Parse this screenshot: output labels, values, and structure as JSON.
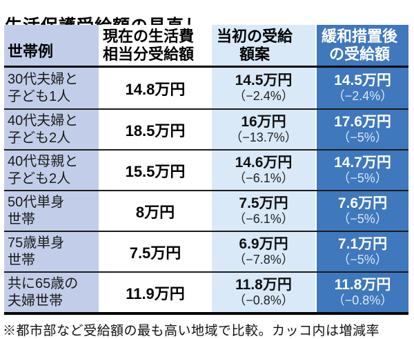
{
  "title": "生活保護受給額の見直し",
  "footnote": "※都市部など受給額の最も高い地域で比較。カッコ内は増減率",
  "colors": {
    "household_col_bg": "#c2cee9",
    "initial_col_bg": "#d9e9f8",
    "relaxed_col_bg": "#3f78bd",
    "relaxed_col_text": "#ffffff"
  },
  "table": {
    "headers": {
      "household": "世帯例",
      "current": "現在の生活費\n相当分受給額",
      "initial": "当初の受給\n額案",
      "relaxed": "緩和措置後\nの受給額"
    },
    "rows": [
      {
        "household": "30代夫婦と\n子ども1人",
        "current": "14.8万円",
        "initial_amount": "14.5万円",
        "initial_pct": "（−2.4%）",
        "relaxed_amount": "14.5万円",
        "relaxed_pct": "（−2.4%）"
      },
      {
        "household": "40代夫婦と\n子ども2人",
        "current": "18.5万円",
        "initial_amount": "16万円",
        "initial_pct": "（−13.7%）",
        "relaxed_amount": "17.6万円",
        "relaxed_pct": "（−5%）"
      },
      {
        "household": "40代母親と\n子ども2人",
        "current": "15.5万円",
        "initial_amount": "14.6万円",
        "initial_pct": "（−6.1%）",
        "relaxed_amount": "14.7万円",
        "relaxed_pct": "（−5%）"
      },
      {
        "household": "50代単身\n世帯",
        "current": "8万円",
        "initial_amount": "7.5万円",
        "initial_pct": "（−6.1%）",
        "relaxed_amount": "7.6万円",
        "relaxed_pct": "（−5%）"
      },
      {
        "household": "75歳単身\n世帯",
        "current": "7.5万円",
        "initial_amount": "6.9万円",
        "initial_pct": "（−7.8%）",
        "relaxed_amount": "7.1万円",
        "relaxed_pct": "（−5%）"
      },
      {
        "household": "共に65歳の\n夫婦世帯",
        "current": "11.9万円",
        "initial_amount": "11.8万円",
        "initial_pct": "（−0.8%）",
        "relaxed_amount": "11.8万円",
        "relaxed_pct": "（−0.8%）"
      }
    ]
  },
  "chart_data": {
    "type": "table",
    "title": "生活保護受給額の見直し",
    "columns": [
      "世帯例",
      "現在の生活費相当分受給額",
      "当初の受給額案",
      "緩和措置後の受給額"
    ],
    "rows": [
      [
        "30代夫婦と子ども1人",
        "14.8万円",
        "14.5万円（−2.4%）",
        "14.5万円（−2.4%）"
      ],
      [
        "40代夫婦と子ども2人",
        "18.5万円",
        "16万円（−13.7%）",
        "17.6万円（−5%）"
      ],
      [
        "40代母親と子ども2人",
        "15.5万円",
        "14.6万円（−6.1%）",
        "14.7万円（−5%）"
      ],
      [
        "50代単身世帯",
        "8万円",
        "7.5万円（−6.1%）",
        "7.6万円（−5%）"
      ],
      [
        "75歳単身世帯",
        "7.5万円",
        "6.9万円（−7.8%）",
        "7.1万円（−5%）"
      ],
      [
        "共に65歳の夫婦世帯",
        "11.9万円",
        "11.8万円（−0.8%）",
        "11.8万円（−0.8%）"
      ]
    ],
    "footnote": "※都市部など受給額の最も高い地域で比較。カッコ内は増減率",
    "values_man_yen": {
      "current": [
        14.8,
        18.5,
        15.5,
        8,
        7.5,
        11.9
      ],
      "initial_proposal": [
        14.5,
        16,
        14.6,
        7.5,
        6.9,
        11.8
      ],
      "initial_change_pct": [
        -2.4,
        -13.7,
        -6.1,
        -6.1,
        -7.8,
        -0.8
      ],
      "after_relaxation": [
        14.5,
        17.6,
        14.7,
        7.6,
        7.1,
        11.8
      ],
      "relaxed_change_pct": [
        -2.4,
        -5,
        -5,
        -5,
        -5,
        -0.8
      ]
    }
  }
}
